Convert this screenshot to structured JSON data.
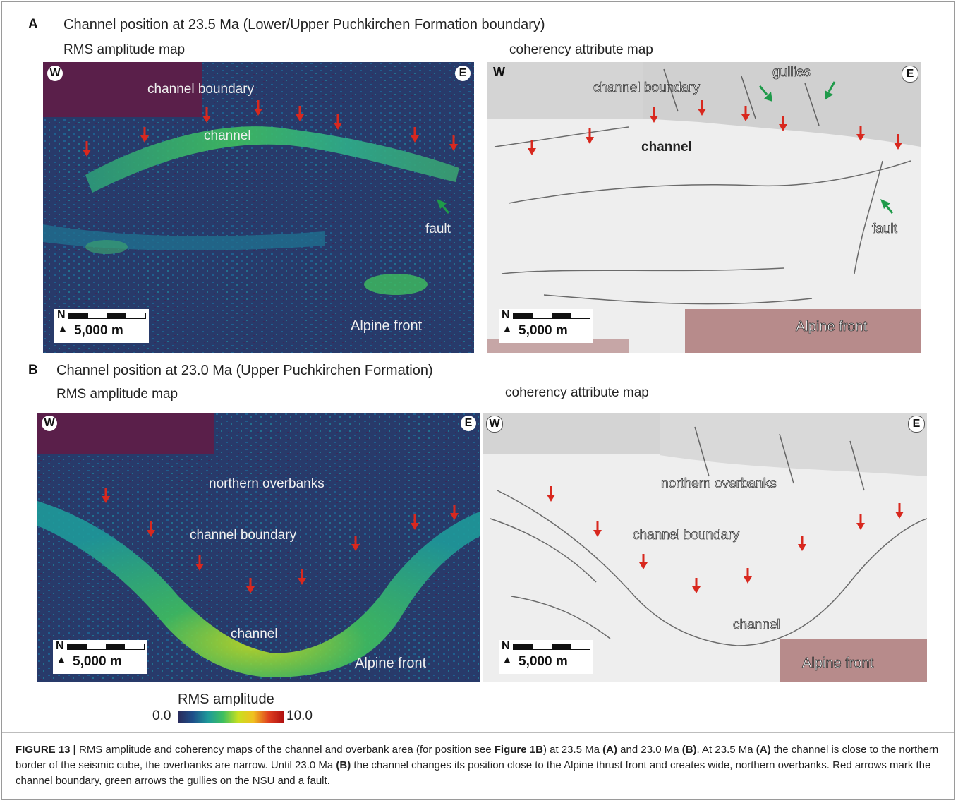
{
  "panelA": {
    "letter": "A",
    "title": "Channel position at 23.5 Ma (Lower/Upper Puchkirchen Formation boundary)",
    "left": {
      "subtitle": "RMS amplitude map",
      "labels": [
        "W",
        "E",
        "channel boundary",
        "channel",
        "fault",
        "Alpine front"
      ],
      "scale": {
        "north": "N",
        "distance": "5,000 m"
      }
    },
    "right": {
      "subtitle": "coherency attribute map",
      "labels": [
        "W",
        "E",
        "channel boundary",
        "gullies",
        "channel",
        "fault",
        "Alpine front"
      ],
      "scale": {
        "north": "N",
        "distance": "5,000 m"
      }
    }
  },
  "panelB": {
    "letter": "B",
    "title": "Channel position at 23.0 Ma (Upper Puchkirchen Formation)",
    "left": {
      "subtitle": "RMS amplitude map",
      "labels": [
        "W",
        "E",
        "northern overbanks",
        "channel boundary",
        "channel",
        "Alpine front"
      ],
      "scale": {
        "north": "N",
        "distance": "5,000 m"
      }
    },
    "right": {
      "subtitle": "coherency attribute map",
      "labels": [
        "W",
        "E",
        "northern overbanks",
        "channel boundary",
        "channel",
        "Alpine front"
      ],
      "scale": {
        "north": "N",
        "distance": "5,000 m"
      }
    }
  },
  "colorbar": {
    "title": "RMS amplitude",
    "min": "0.0",
    "max": "10.0",
    "colors": [
      "#2a2a5a",
      "#1e4f8a",
      "#1e9a9a",
      "#3fbf5f",
      "#c8e020",
      "#f0c020",
      "#e04020",
      "#b01010"
    ]
  },
  "colors": {
    "arrow_red": "#d8281e",
    "arrow_green": "#1f9a4a",
    "rms_background": "#283a6a",
    "coherency_background": "#eeeeee"
  },
  "caption": {
    "label": "FIGURE 13 |",
    "t1": " RMS amplitude and coherency maps of the channel and overbank area (for position see ",
    "b1": "Figure 1B",
    "t2": ") at 23.5 Ma ",
    "b2": "(A)",
    "t3": " and 23.0 Ma ",
    "b3": "(B)",
    "t4": ". At 23.5 Ma ",
    "b4": "(A)",
    "t5": " the channel is close to the northern border of the seismic cube, the overbanks are narrow. Until 23.0 Ma ",
    "b5": "(B)",
    "t6": " the channel changes its position close to the Alpine thrust front and creates wide, northern overbanks. Red arrows mark the channel boundary, green arrows the gullies on the NSU and a fault."
  }
}
